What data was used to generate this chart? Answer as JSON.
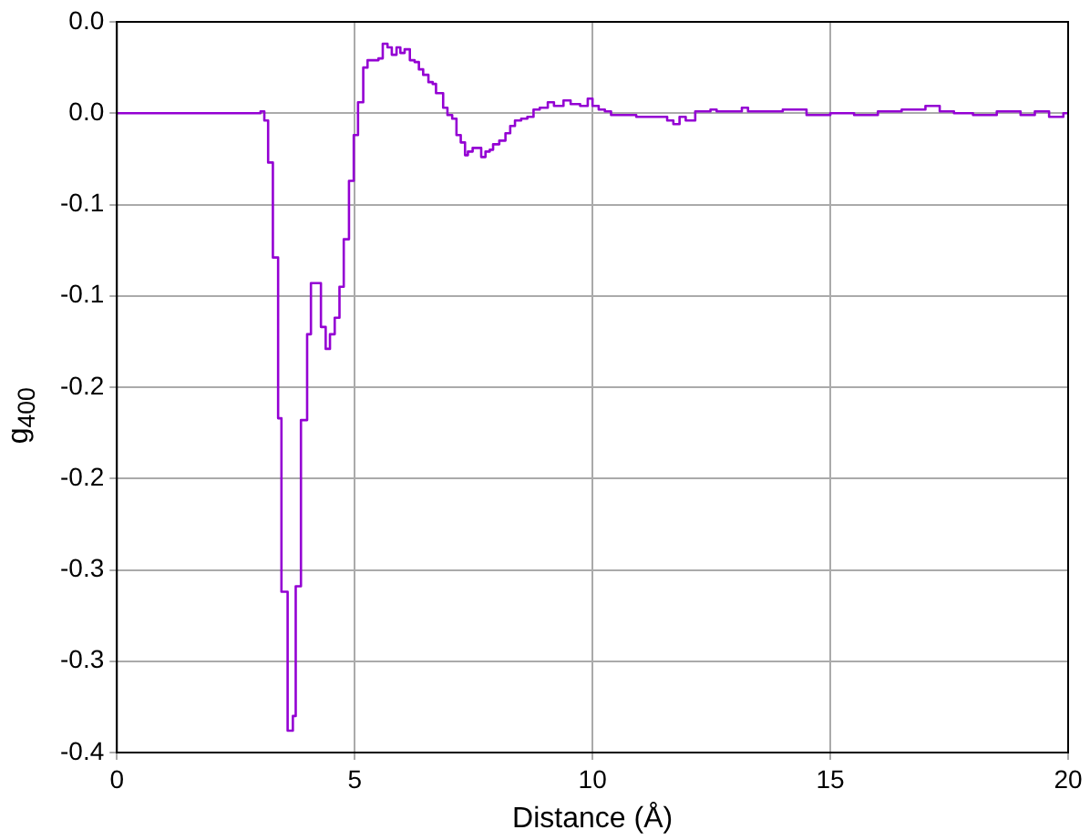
{
  "chart_data": {
    "type": "step",
    "xlabel": "Distance (Å)",
    "ylabel": "g$_{400}$",
    "xlim": [
      0,
      20
    ],
    "xticks": [
      0,
      5,
      10,
      15,
      20
    ],
    "ylim": [
      -0.35,
      0.05
    ],
    "yticks": [
      {
        "value": 0.05,
        "label": "0.0"
      },
      {
        "value": 0,
        "label": "0.0"
      },
      {
        "value": -0.05,
        "label": "-0.1"
      },
      {
        "value": -0.1,
        "label": "-0.1"
      },
      {
        "value": -0.15,
        "label": "-0.2"
      },
      {
        "value": -0.2,
        "label": "-0.2"
      },
      {
        "value": -0.25,
        "label": "-0.3"
      },
      {
        "value": -0.3,
        "label": "-0.3"
      },
      {
        "value": -0.35,
        "label": "-0.4"
      }
    ],
    "grid": true,
    "legend": false,
    "marker": "none",
    "line_style": "solid",
    "series": [
      {
        "color": "#9400d3",
        "x": [
          0,
          3.02,
          3.1,
          3.18,
          3.28,
          3.39,
          3.46,
          3.59,
          3.7,
          3.76,
          3.87,
          4.0,
          4.08,
          4.17,
          4.29,
          4.39,
          4.48,
          4.58,
          4.68,
          4.77,
          4.88,
          4.98,
          5.07,
          5.18,
          5.27,
          5.4,
          5.5,
          5.59,
          5.69,
          5.78,
          5.88,
          5.96,
          6.05,
          6.16,
          6.26,
          6.35,
          6.44,
          6.55,
          6.64,
          6.71,
          6.86,
          6.95,
          7.05,
          7.14,
          7.23,
          7.32,
          7.38,
          7.48,
          7.58,
          7.66,
          7.75,
          7.84,
          7.91,
          8.04,
          8.17,
          8.27,
          8.37,
          8.5,
          8.63,
          8.76,
          8.89,
          9.06,
          9.19,
          9.39,
          9.54,
          9.74,
          9.9,
          10.0,
          10.13,
          10.26,
          10.39,
          10.65,
          10.92,
          11.11,
          11.31,
          11.57,
          11.7,
          11.83,
          11.96,
          12.16,
          12.48,
          12.61,
          13.14,
          13.27,
          14,
          14.5,
          15,
          15.5,
          16,
          16.5,
          17,
          17.3,
          17.6,
          18,
          18.5,
          19,
          19.3,
          19.6,
          19.9,
          20
        ],
        "values": [
          0,
          0.001,
          -0.004,
          -0.027,
          -0.079,
          -0.167,
          -0.262,
          -0.338,
          -0.33,
          -0.259,
          -0.168,
          -0.121,
          -0.093,
          -0.093,
          -0.117,
          -0.129,
          -0.121,
          -0.112,
          -0.095,
          -0.069,
          -0.037,
          -0.012,
          0.006,
          0.025,
          0.029,
          0.029,
          0.03,
          0.038,
          0.036,
          0.032,
          0.036,
          0.033,
          0.035,
          0.029,
          0.028,
          0.024,
          0.021,
          0.017,
          0.016,
          0.011,
          0.003,
          -0.001,
          -0.003,
          -0.012,
          -0.016,
          -0.023,
          -0.021,
          -0.019,
          -0.019,
          -0.024,
          -0.021,
          -0.02,
          -0.017,
          -0.015,
          -0.011,
          -0.007,
          -0.004,
          -0.003,
          -0.002,
          0.002,
          0.003,
          0.006,
          0.004,
          0.007,
          0.005,
          0.004,
          0.008,
          0.004,
          0.002,
          0.001,
          -0.001,
          -0.001,
          -0.002,
          -0.002,
          -0.002,
          -0.004,
          -0.006,
          -0.002,
          -0.004,
          0.001,
          0.002,
          0.001,
          0.003,
          0.001,
          0.002,
          -0.001,
          0,
          -0.001,
          0.001,
          0.002,
          0.004,
          0.001,
          0,
          -0.001,
          0.001,
          -0.001,
          0.001,
          -0.002,
          0,
          0
        ]
      }
    ]
  }
}
